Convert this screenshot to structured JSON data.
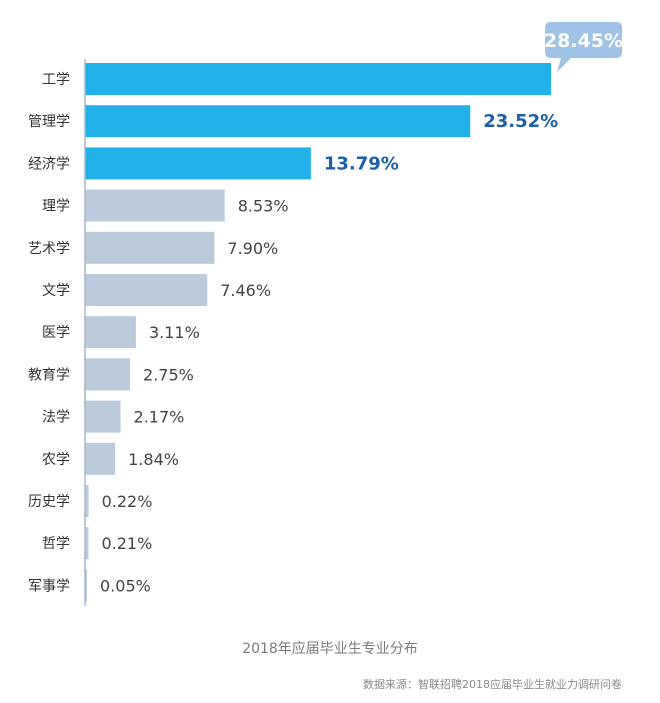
{
  "chart_data": {
    "type": "bar",
    "orientation": "horizontal",
    "categories": [
      "工学",
      "管理学",
      "经济学",
      "理学",
      "艺术学",
      "文学",
      "医学",
      "教育学",
      "法学",
      "农学",
      "历史学",
      "哲学",
      "军事学"
    ],
    "values": [
      28.45,
      23.52,
      13.79,
      8.53,
      7.9,
      7.46,
      3.11,
      2.75,
      2.17,
      1.84,
      0.22,
      0.21,
      0.05
    ],
    "value_labels": [
      "28.45%",
      "23.52%",
      "13.79%",
      "8.53%",
      "7.90%",
      "7.46%",
      "3.11%",
      "2.75%",
      "2.17%",
      "1.84%",
      "0.22%",
      "0.21%",
      "0.05%"
    ],
    "unit": "%",
    "highlight_top_n": 3,
    "colors": {
      "highlight": "#22b0e8",
      "normal": "#bccbdc",
      "highlight_label": "#1a5fa8",
      "normal_label": "#444444",
      "callout": "#9fc3e4"
    },
    "grid": false
  },
  "caption": "2018年应届毕业生专业分布",
  "source": "数据来源：智联招聘2018应届毕业生就业力调研问卷"
}
